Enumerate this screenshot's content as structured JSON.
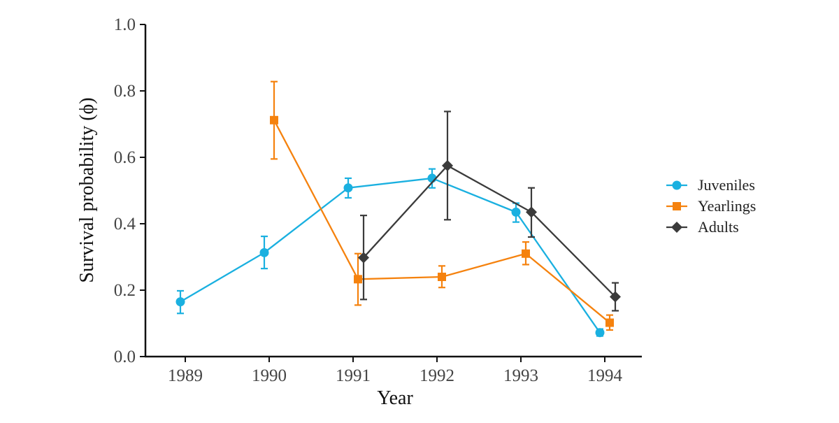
{
  "chart_data": {
    "type": "line",
    "xlabel": "Year",
    "ylabel": "Survival probability (ϕ)",
    "categories": [
      "1989",
      "1990",
      "1991",
      "1992",
      "1993",
      "1994"
    ],
    "ylim": [
      0,
      1
    ],
    "yticks": [
      "0.0",
      "0.2",
      "0.4",
      "0.6",
      "0.8",
      "1.0"
    ],
    "grid": false,
    "legend_position": "right",
    "series": [
      {
        "name": "Juveniles",
        "color": "#1ab0e0",
        "marker": "circle",
        "points": [
          {
            "x": "1989",
            "y": 0.165,
            "low": 0.13,
            "high": 0.198
          },
          {
            "x": "1990",
            "y": 0.313,
            "low": 0.265,
            "high": 0.362
          },
          {
            "x": "1991",
            "y": 0.508,
            "low": 0.478,
            "high": 0.537
          },
          {
            "x": "1992",
            "y": 0.537,
            "low": 0.508,
            "high": 0.565
          },
          {
            "x": "1993",
            "y": 0.435,
            "low": 0.405,
            "high": 0.462
          },
          {
            "x": "1994",
            "y": 0.072,
            "low": 0.062,
            "high": 0.083
          }
        ]
      },
      {
        "name": "Yearlings",
        "color": "#f5820e",
        "marker": "square",
        "points": [
          {
            "x": "1990",
            "y": 0.712,
            "low": 0.595,
            "high": 0.828
          },
          {
            "x": "1991",
            "y": 0.233,
            "low": 0.155,
            "high": 0.31
          },
          {
            "x": "1992",
            "y": 0.24,
            "low": 0.208,
            "high": 0.273
          },
          {
            "x": "1993",
            "y": 0.31,
            "low": 0.277,
            "high": 0.345
          },
          {
            "x": "1994",
            "y": 0.102,
            "low": 0.08,
            "high": 0.125
          }
        ]
      },
      {
        "name": "Adults",
        "color": "#3b3b3b",
        "marker": "diamond",
        "points": [
          {
            "x": "1991",
            "y": 0.298,
            "low": 0.172,
            "high": 0.425
          },
          {
            "x": "1992",
            "y": 0.575,
            "low": 0.412,
            "high": 0.738
          },
          {
            "x": "1993",
            "y": 0.435,
            "low": 0.36,
            "high": 0.508
          },
          {
            "x": "1994",
            "y": 0.18,
            "low": 0.138,
            "high": 0.222
          }
        ]
      }
    ]
  }
}
